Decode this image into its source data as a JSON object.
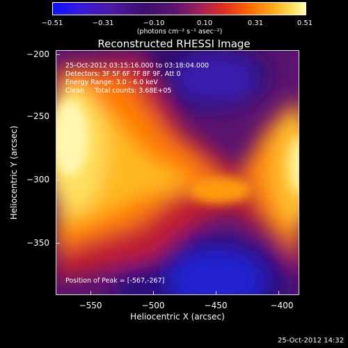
{
  "colorbar": {
    "ticks": [
      "−0.51",
      "−0.31",
      "−0.10",
      "0.10",
      "0.31",
      "0.51"
    ],
    "unit_label": "(photons cm⁻² s⁻¹ asec⁻²)"
  },
  "title": "Reconstructed RHESSI Image",
  "annotations": {
    "time_range": "25-Oct-2012 03:15:16.000 to 03:18:04.000",
    "detectors": "Detectors: 3F 5F 6F 7F 8F 9F, Att 0",
    "energy_range": "Energy Range: 3.0 - 6.0 keV",
    "method_counts": "Clean     Total counts: 3.68E+05",
    "peak_position": "Position of Peak = [-567,-267]"
  },
  "axes": {
    "x_label": "Heliocentric X (arcsec)",
    "y_label": "Heliocentric Y (arcsec)",
    "x_ticks": [
      "−550",
      "−500",
      "−450",
      "−400"
    ],
    "y_ticks": [
      "−200",
      "−250",
      "−300",
      "−350"
    ]
  },
  "timestamp": "25-Oct-2012 14:32"
}
